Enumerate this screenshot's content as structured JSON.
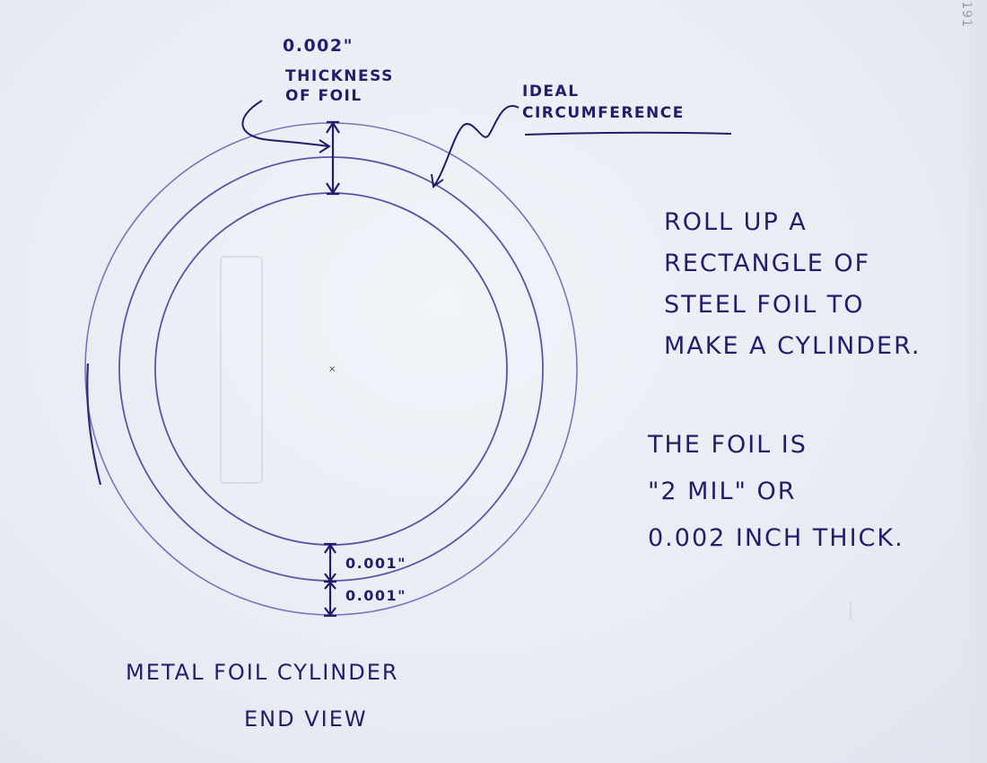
{
  "annotations": {
    "foil_thickness_value": "0.002\"",
    "foil_thickness_label_line1": "THICKNESS",
    "foil_thickness_label_line2": "OF FOIL",
    "ideal_line1": "IDEAL",
    "ideal_line2": "CIRCUMFERENCE",
    "inner_half": "0.001\"",
    "outer_half": "0.001\""
  },
  "instructions": {
    "paragraph1": "ROLL UP A\nRECTANGLE OF\nSTEEL FOIL TO\nMAKE A CYLINDER.",
    "paragraph2": "THE FOIL IS\n\"2 MIL\" OR\n0.002 INCH THICK."
  },
  "caption": {
    "line1": "METAL FOIL CYLINDER",
    "line2": "END VIEW"
  },
  "page_number": "191",
  "colors": {
    "ink": "#231d6e",
    "circle": "#6d66b8",
    "paper": "#eef1f7"
  }
}
